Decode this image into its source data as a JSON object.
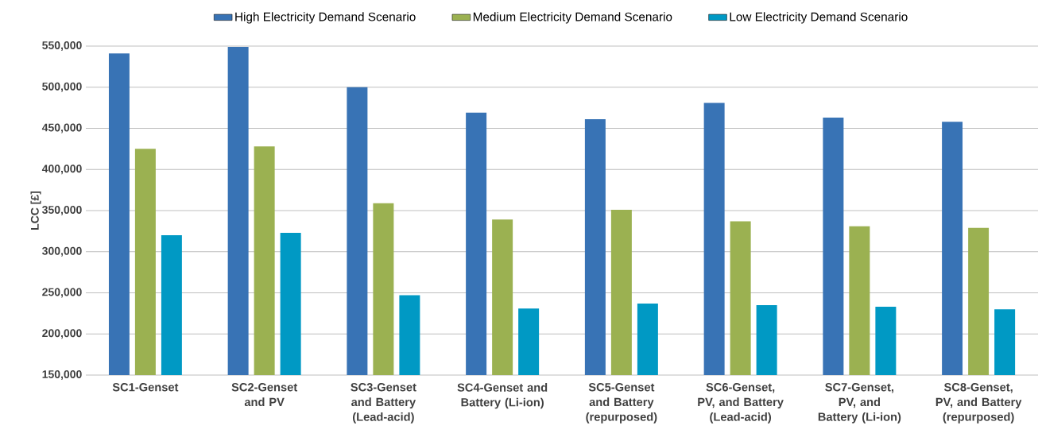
{
  "chart_data": {
    "type": "bar",
    "ylabel": "LCC [£]",
    "categories": [
      "SC1-Genset",
      "SC2-Genset and PV",
      "SC3-Genset and Battery (Lead-acid)",
      "SC4-Genset and Battery (Li-ion)",
      "SC5-Genset and Battery (repurposed)",
      "SC6-Genset, PV, and Battery (Lead-acid)",
      "SC7-Genset, PV, and Battery (Li-ion)",
      "SC8-Genset, PV, and Battery (repurposed)"
    ],
    "series": [
      {
        "name": "High Electricity Demand Scenario",
        "color": "#3873b5",
        "values": [
          541000,
          549000,
          500000,
          469000,
          461000,
          481000,
          463000,
          458000
        ]
      },
      {
        "name": "Medium Electricity Demand Scenario",
        "color": "#9bb151",
        "values": [
          425000,
          428000,
          359000,
          339000,
          351000,
          337000,
          331000,
          329000
        ]
      },
      {
        "name": "Low Electricity Demand Scenario",
        "color": "#0099c4",
        "values": [
          320000,
          323000,
          247000,
          231000,
          237000,
          235000,
          233000,
          230000
        ]
      }
    ],
    "ylim": [
      150000,
      550000
    ],
    "yticks": [
      {
        "value": 150000,
        "label": "150,000"
      },
      {
        "value": 200000,
        "label": "200,000"
      },
      {
        "value": 250000,
        "label": "250,000"
      },
      {
        "value": 300000,
        "label": "300,000"
      },
      {
        "value": 350000,
        "label": "350,000"
      },
      {
        "value": 400000,
        "label": "400,000"
      },
      {
        "value": 450000,
        "label": "450,000"
      },
      {
        "value": 500000,
        "label": "500,000"
      },
      {
        "value": 550000,
        "label": "550,000"
      }
    ],
    "grid": "y",
    "legend": "top"
  }
}
